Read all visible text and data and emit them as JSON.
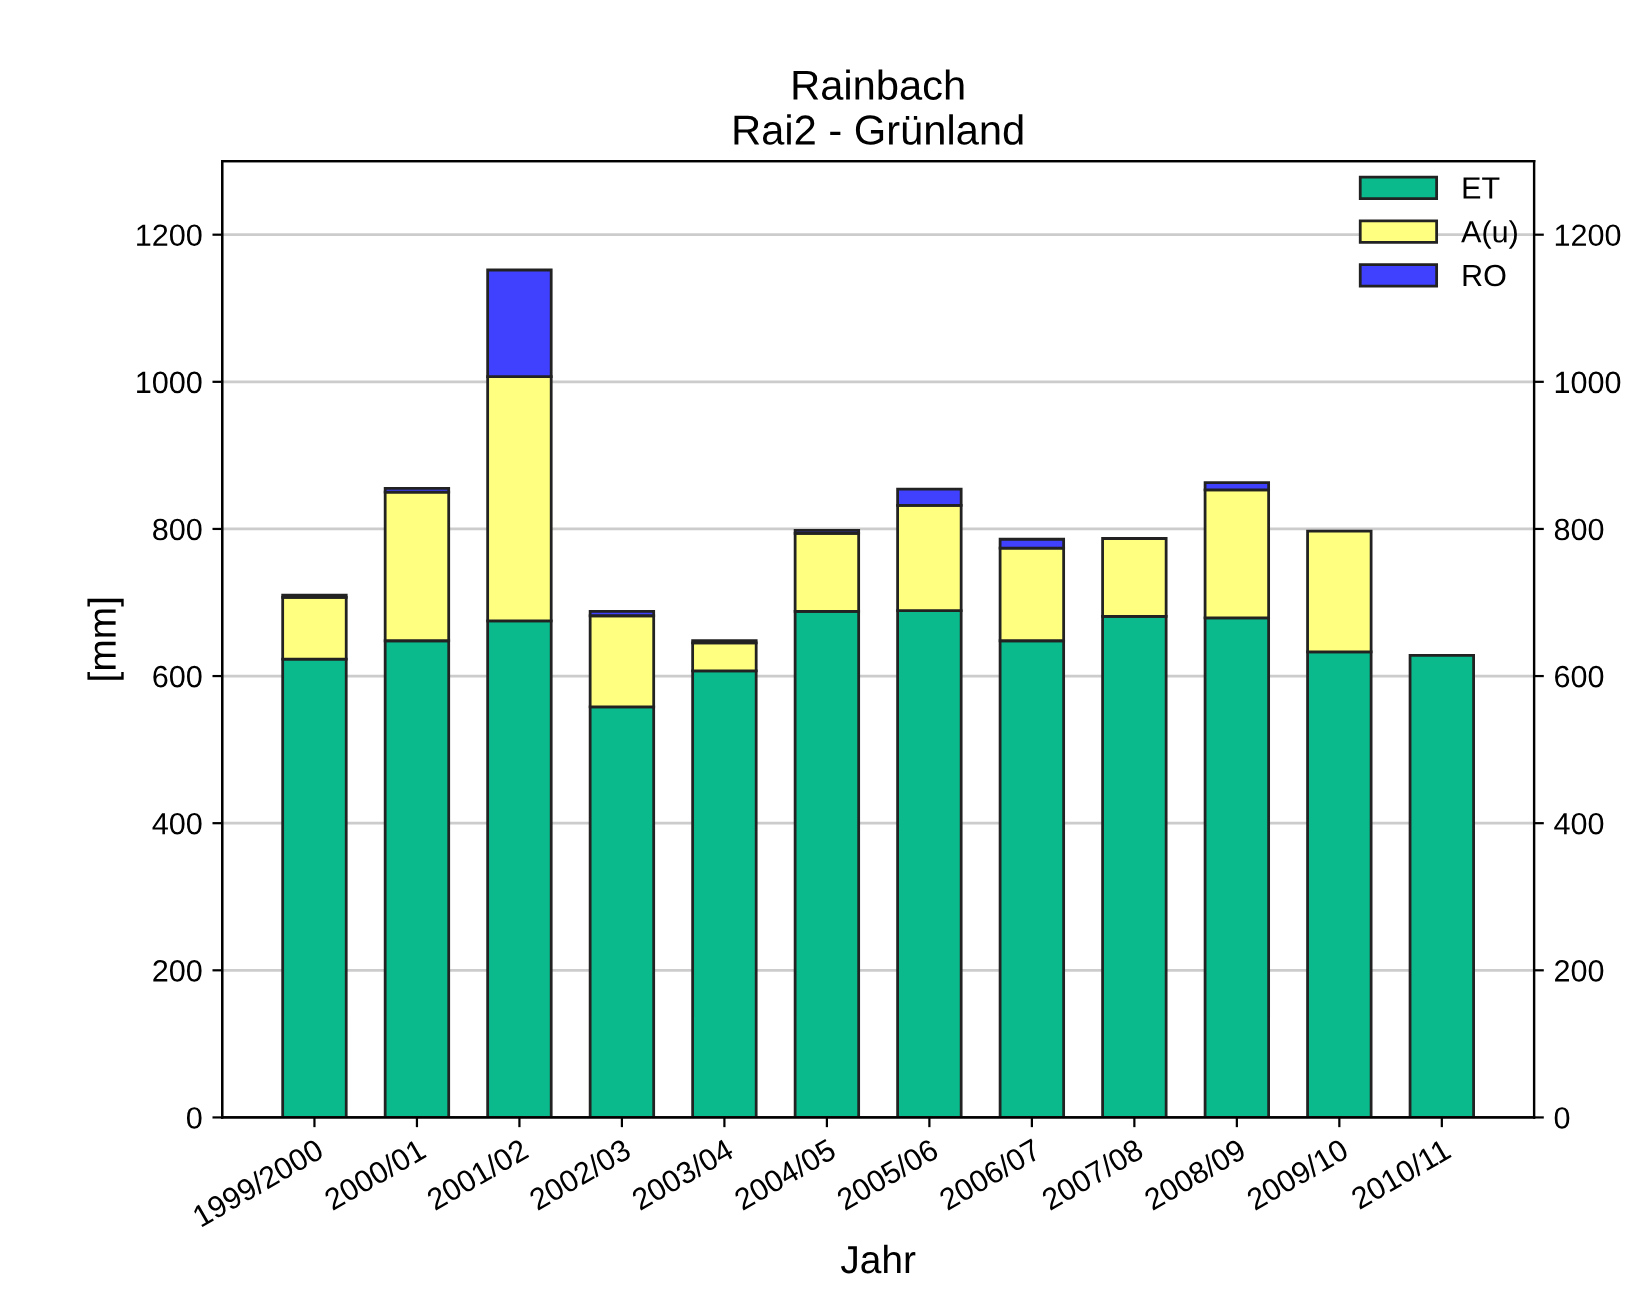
{
  "chart_data": {
    "type": "bar",
    "title": "Rainbach\nRai2 - Grünland",
    "xlabel": "Jahr",
    "ylabel": "[mm]",
    "categories": [
      "1999/2000",
      "2000/01",
      "2001/02",
      "2002/03",
      "2003/04",
      "2004/05",
      "2005/06",
      "2006/07",
      "2007/08",
      "2008/09",
      "2009/10",
      "2010/11"
    ],
    "stacked": true,
    "series": [
      {
        "name": "ET",
        "color": "#0bba8c",
        "values": [
          623,
          648,
          675,
          558,
          607,
          688,
          689,
          648,
          681,
          679,
          633,
          628
        ]
      },
      {
        "name": "A(u)",
        "color": "#ffff80",
        "values": [
          84,
          202,
          332,
          124,
          38,
          106,
          143,
          126,
          106,
          174,
          164,
          0
        ]
      },
      {
        "name": "RO",
        "color": "#4040ff",
        "values": [
          3,
          5,
          145,
          6,
          3,
          4,
          22,
          12,
          0,
          10,
          0,
          0
        ]
      }
    ],
    "ylim": [
      0,
      1300
    ],
    "yticks": [
      0,
      200,
      400,
      600,
      800,
      1000,
      1200
    ],
    "y2lim": [
      0,
      1300
    ],
    "y2ticks": [
      0,
      200,
      400,
      600,
      800,
      1000,
      1200
    ],
    "grid": "y",
    "legend": "top right"
  }
}
